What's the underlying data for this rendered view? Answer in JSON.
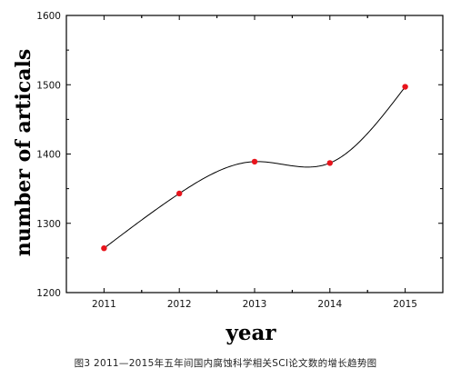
{
  "chart_data": {
    "type": "scatter",
    "x": [
      2011,
      2012,
      2013,
      2014,
      2015
    ],
    "y": [
      1264,
      1343,
      1389,
      1387,
      1497
    ],
    "fit_curve": "smooth",
    "xlabel": "year",
    "ylabel": "number of articals",
    "x_ticks": [
      "2011",
      "2012",
      "2013",
      "2014",
      "2015"
    ],
    "y_ticks": [
      "1200",
      "1300",
      "1400",
      "1500",
      "1600"
    ],
    "ylim": [
      1200,
      1600
    ],
    "xlim": [
      2010.5,
      2015.5
    ],
    "grid": false,
    "legend": "none",
    "marker_color": "#e8141c",
    "line_color": "#000000"
  },
  "caption": "图3 2011—2015年五年间国内腐蚀科学相关SCI论文数的增长趋势图"
}
